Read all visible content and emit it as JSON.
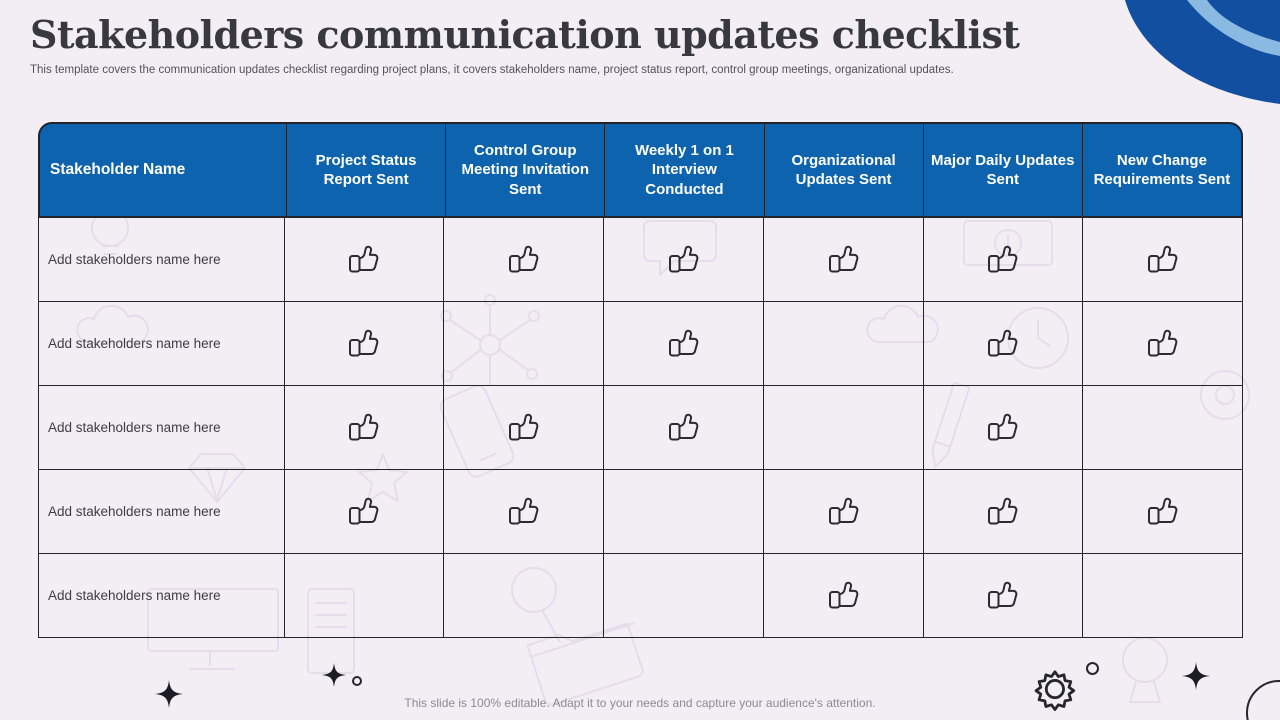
{
  "slide": {
    "title": "Stakeholders communication updates checklist",
    "subtitle": "This template covers the communication updates checklist regarding project plans, it covers stakeholders name, project status report, control group meetings, organizational updates.",
    "footer_note": "This slide is 100% editable. Adapt it to your needs and capture your audience's attention."
  },
  "colors": {
    "background": "#f3eef4",
    "header_blue": "#0e63ae",
    "table_border": "#23232c",
    "accent_dark": "#1c1c25",
    "icon_stroke": "#2a2a33",
    "blob_blue": "#134fa0",
    "blob_stripe": "#8ab9e2"
  },
  "table": {
    "columns": [
      "Stakeholder Name",
      "Project Status Report Sent",
      "Control Group Meeting Invitation Sent",
      "Weekly 1 on 1 Interview Conducted",
      "Organizational Updates Sent",
      "Major Daily Updates Sent",
      "New Change Requirements Sent"
    ],
    "rows": [
      {
        "name": "Add stakeholders name here",
        "checks": [
          true,
          true,
          true,
          true,
          true,
          true
        ]
      },
      {
        "name": "Add stakeholders name here",
        "checks": [
          true,
          false,
          true,
          false,
          true,
          true
        ]
      },
      {
        "name": "Add stakeholders name here",
        "checks": [
          true,
          true,
          true,
          false,
          true,
          false
        ]
      },
      {
        "name": "Add stakeholders name here",
        "checks": [
          true,
          true,
          false,
          true,
          true,
          true
        ]
      },
      {
        "name": "Add stakeholders name here",
        "checks": [
          false,
          false,
          false,
          true,
          true,
          false
        ]
      }
    ]
  },
  "icons": {
    "check_icon": "thumbs-up-icon",
    "decorations": [
      "sparkle-icon",
      "gear-icon",
      "circle-outline-icon",
      "corner-wave-shape"
    ]
  }
}
